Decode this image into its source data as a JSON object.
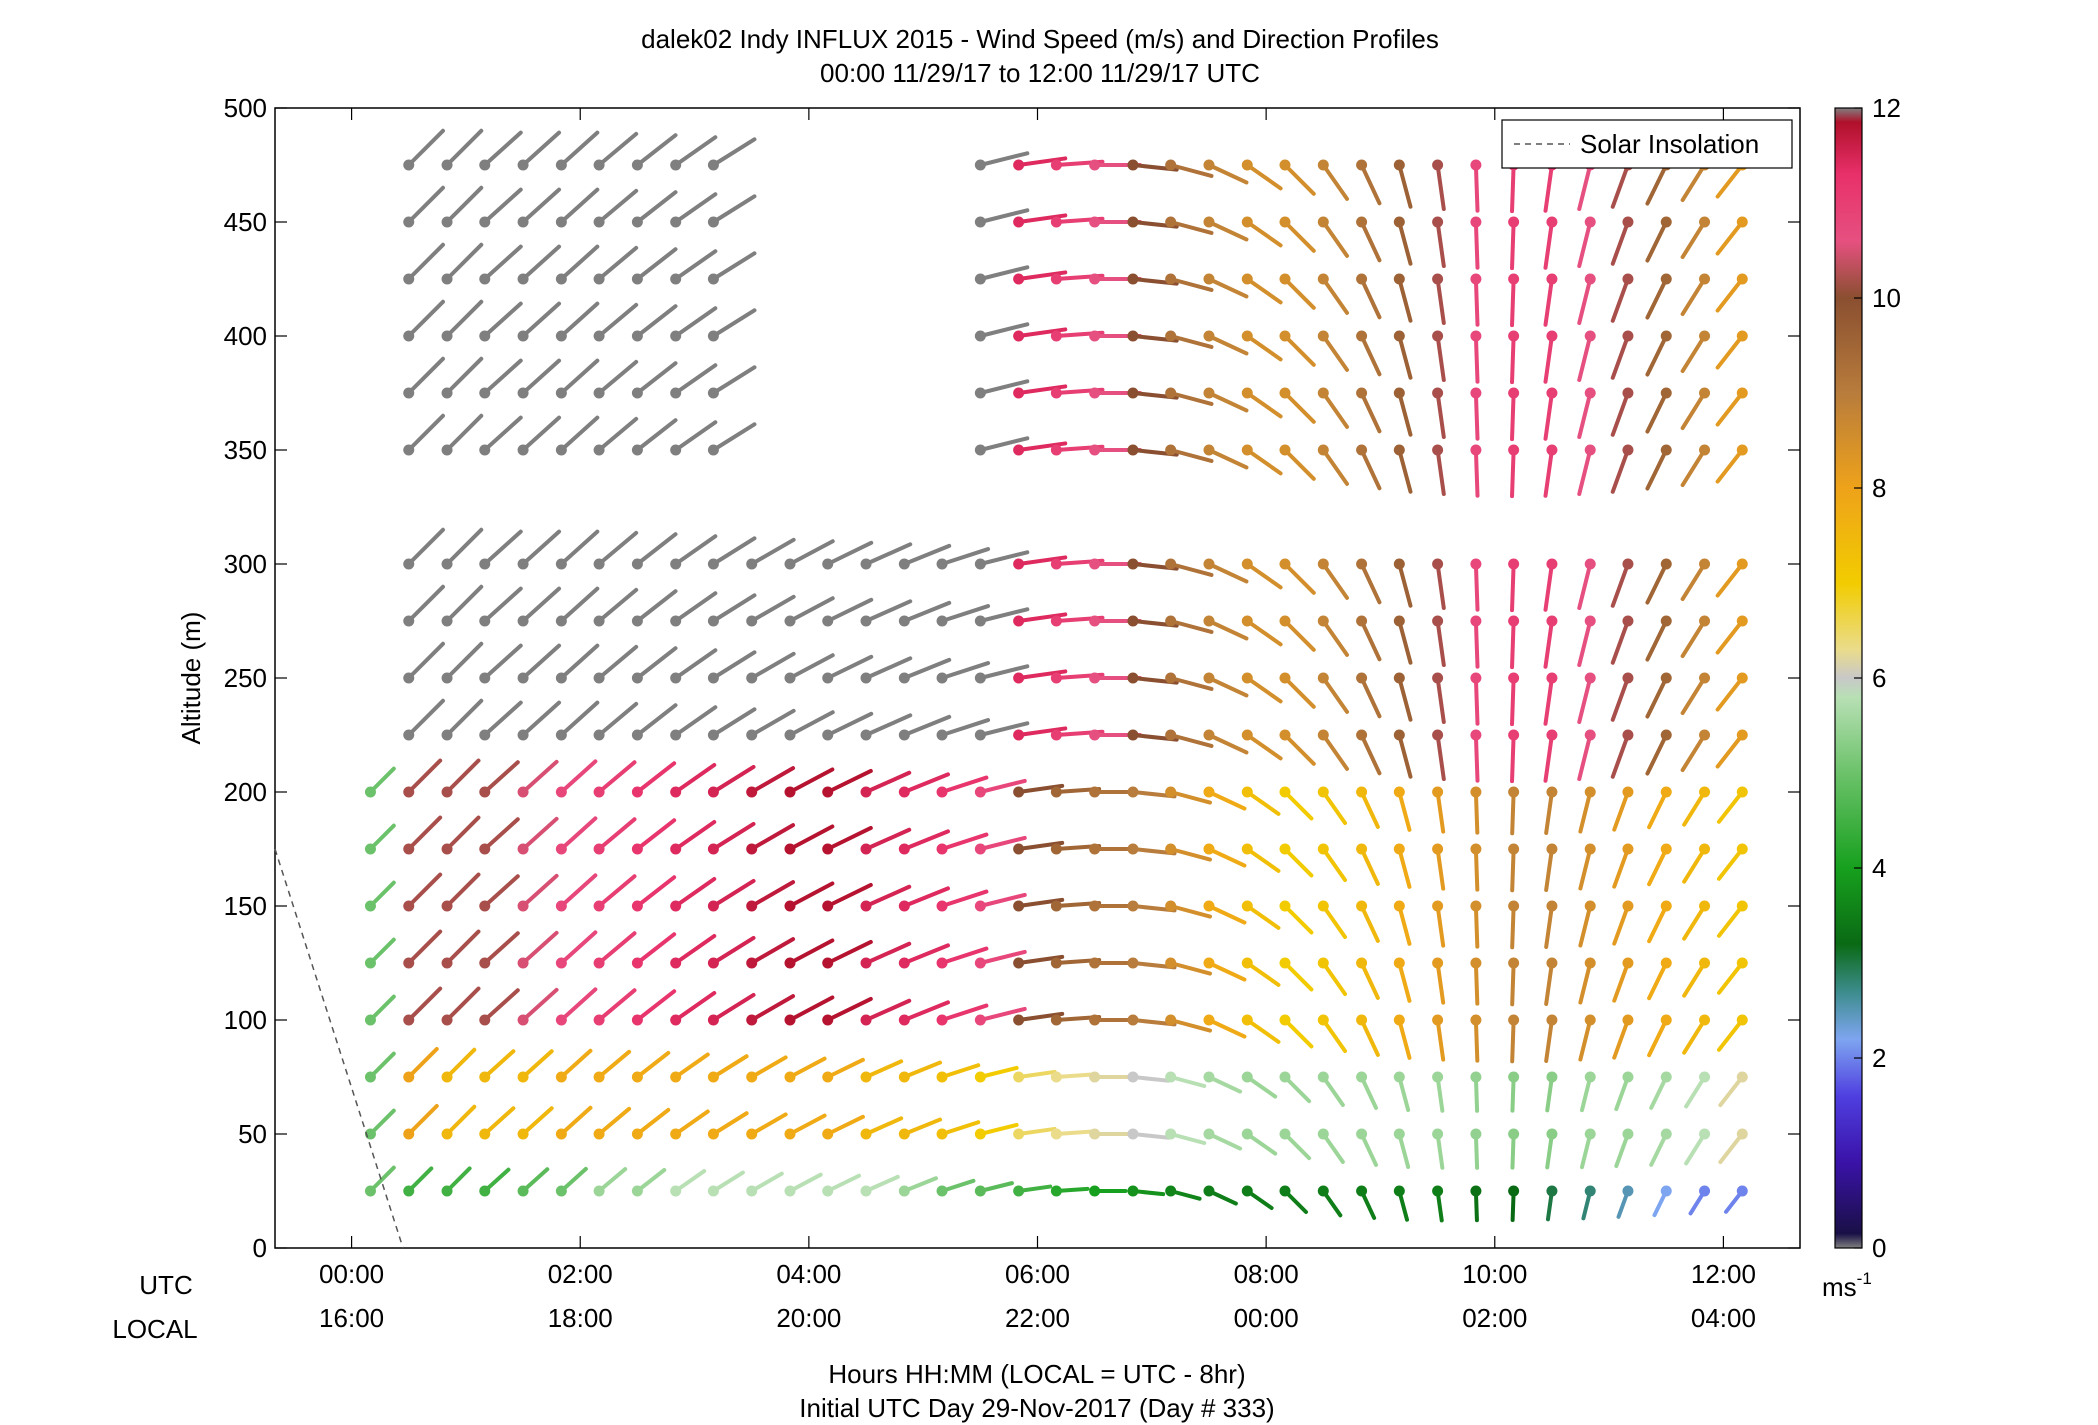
{
  "title_line1": "dalek02 Indy INFLUX 2015 - Wind Speed (m/s) and Direction Profiles",
  "title_line2": "00:00 11/29/17 to 12:00 11/29/17  UTC",
  "ylabel": "Altitude (m)",
  "utc_label": "UTC",
  "local_label": "LOCAL",
  "xlabel_line1": "Hours HH:MM  (LOCAL = UTC - 8hr)",
  "xlabel_line2": "Initial UTC Day 29-Nov-2017 (Day # 333)",
  "legend_label": "Solar Insolation",
  "colorbar_unit": "ms",
  "colorbar_unit_exp": "-1",
  "chart_data": {
    "type": "scatter",
    "description_of_marks": "wind barbs: dot at (time, altitude), stem points toward wind direction, colour = speed",
    "xlim_hours_utc": [
      -0.67,
      12.67
    ],
    "ylim": [
      0,
      500
    ],
    "yticks": [
      0,
      50,
      100,
      150,
      200,
      250,
      300,
      350,
      400,
      450,
      500
    ],
    "xticks_utc": [
      "00:00",
      "02:00",
      "04:00",
      "06:00",
      "08:00",
      "10:00",
      "12:00"
    ],
    "xticks_local": [
      "16:00",
      "18:00",
      "20:00",
      "22:00",
      "00:00",
      "02:00",
      "04:00"
    ],
    "xtick_hours": [
      0,
      2,
      4,
      6,
      8,
      10,
      12
    ],
    "colorbar": {
      "range": [
        0,
        12
      ],
      "ticks": [
        0,
        2,
        4,
        6,
        8,
        10,
        12
      ],
      "stops": [
        {
          "v": 0,
          "c": "#7f7f7f"
        },
        {
          "v": 0.15,
          "c": "#1a1046"
        },
        {
          "v": 0.9,
          "c": "#3a12a8"
        },
        {
          "v": 1.6,
          "c": "#4f3fe0"
        },
        {
          "v": 2.2,
          "c": "#7ea5f0"
        },
        {
          "v": 2.7,
          "c": "#3c8c8c"
        },
        {
          "v": 3.2,
          "c": "#0a6a14"
        },
        {
          "v": 4.0,
          "c": "#17a01e"
        },
        {
          "v": 5.0,
          "c": "#6cc26a"
        },
        {
          "v": 5.8,
          "c": "#b8e0b4"
        },
        {
          "v": 6.0,
          "c": "#c8c8c8"
        },
        {
          "v": 6.3,
          "c": "#eadc8a"
        },
        {
          "v": 7.0,
          "c": "#f2cc00"
        },
        {
          "v": 8.0,
          "c": "#eea21a"
        },
        {
          "v": 9.0,
          "c": "#b87c3c"
        },
        {
          "v": 10.0,
          "c": "#8a4f30"
        },
        {
          "v": 10.6,
          "c": "#e65080"
        },
        {
          "v": 11.3,
          "c": "#e8306a"
        },
        {
          "v": 11.85,
          "c": "#b0102a"
        },
        {
          "v": 12,
          "c": "#7f7f7f"
        }
      ]
    },
    "solar_insolation_line": [
      [
        -0.67,
        175
      ],
      [
        0.45,
        0
      ]
    ],
    "altitudes": [
      25,
      50,
      75,
      100,
      125,
      150,
      175,
      200,
      225,
      250,
      275,
      300,
      350,
      375,
      400,
      425,
      450,
      475
    ],
    "time_blocks": [
      {
        "t0": 0.0,
        "t1": 0.33,
        "bands": [
          [
            5,
            215,
            5
          ]
        ],
        "dir": 225
      },
      {
        "t0": 0.33,
        "t1": 0.67,
        "bands": [
          [
            5,
            40,
            4.5
          ],
          [
            40,
            100,
            8
          ],
          [
            100,
            215,
            10.2
          ],
          [
            215,
            500,
            12
          ]
        ],
        "dir": 225
      },
      {
        "t0": 0.67,
        "t1": 1.0,
        "bands": [
          [
            5,
            40,
            4.5
          ],
          [
            40,
            100,
            7.5
          ],
          [
            100,
            215,
            10.2
          ],
          [
            215,
            500,
            12
          ]
        ],
        "dir": 225
      },
      {
        "t0": 1.0,
        "t1": 1.33,
        "bands": [
          [
            5,
            40,
            4.5
          ],
          [
            40,
            100,
            7.5
          ],
          [
            100,
            215,
            10.2
          ],
          [
            215,
            500,
            12
          ]
        ],
        "dir": 228
      },
      {
        "t0": 1.33,
        "t1": 1.67,
        "bands": [
          [
            5,
            40,
            4.8
          ],
          [
            40,
            100,
            7.5
          ],
          [
            100,
            215,
            10.5
          ],
          [
            215,
            500,
            12
          ]
        ],
        "dir": 228
      },
      {
        "t0": 1.67,
        "t1": 2.0,
        "bands": [
          [
            5,
            40,
            5.0
          ],
          [
            40,
            100,
            7.8
          ],
          [
            100,
            215,
            10.8
          ],
          [
            215,
            500,
            12
          ]
        ],
        "dir": 228
      },
      {
        "t0": 2.0,
        "t1": 2.33,
        "bands": [
          [
            5,
            40,
            5.5
          ],
          [
            40,
            100,
            7.8
          ],
          [
            100,
            215,
            11.0
          ],
          [
            215,
            500,
            12
          ]
        ],
        "dir": 230
      },
      {
        "t0": 2.33,
        "t1": 2.67,
        "bands": [
          [
            5,
            40,
            5.5
          ],
          [
            40,
            100,
            7.8
          ],
          [
            100,
            215,
            11.2
          ],
          [
            215,
            500,
            12
          ]
        ],
        "dir": 232
      },
      {
        "t0": 2.67,
        "t1": 3.0,
        "bands": [
          [
            5,
            40,
            5.8
          ],
          [
            40,
            100,
            7.8
          ],
          [
            100,
            215,
            11.4
          ],
          [
            215,
            500,
            12
          ]
        ],
        "dir": 235
      },
      {
        "t0": 3.0,
        "t1": 3.33,
        "bands": [
          [
            5,
            40,
            5.8
          ],
          [
            40,
            100,
            7.8
          ],
          [
            100,
            215,
            11.5
          ],
          [
            215,
            500,
            12
          ]
        ],
        "dir": 238
      },
      {
        "t0": 3.33,
        "t1": 3.67,
        "bands": [
          [
            5,
            40,
            5.8
          ],
          [
            40,
            100,
            7.8
          ],
          [
            100,
            215,
            11.7
          ],
          [
            215,
            500,
            12
          ]
        ],
        "dir": 240
      },
      {
        "t0": 3.67,
        "t1": 4.0,
        "bands": [
          [
            5,
            40,
            5.8
          ],
          [
            40,
            100,
            7.8
          ],
          [
            100,
            215,
            11.8
          ],
          [
            215,
            500,
            12
          ]
        ],
        "dir": 242
      },
      {
        "t0": 4.0,
        "t1": 4.33,
        "bands": [
          [
            5,
            40,
            5.8
          ],
          [
            40,
            100,
            7.8
          ],
          [
            100,
            215,
            11.8
          ],
          [
            215,
            500,
            12
          ]
        ],
        "dir": 244
      },
      {
        "t0": 4.33,
        "t1": 4.67,
        "bands": [
          [
            5,
            40,
            5.8
          ],
          [
            40,
            100,
            7.5
          ],
          [
            100,
            215,
            11.5
          ],
          [
            215,
            500,
            12
          ]
        ],
        "dir": 246
      },
      {
        "t0": 4.67,
        "t1": 5.0,
        "bands": [
          [
            5,
            40,
            5.5
          ],
          [
            40,
            100,
            7.5
          ],
          [
            100,
            215,
            11.4
          ],
          [
            215,
            500,
            12
          ]
        ],
        "dir": 248
      },
      {
        "t0": 5.0,
        "t1": 5.33,
        "bands": [
          [
            5,
            40,
            5.0
          ],
          [
            40,
            100,
            7.3
          ],
          [
            100,
            215,
            11.2
          ],
          [
            215,
            500,
            12
          ]
        ],
        "dir": 252
      },
      {
        "t0": 5.33,
        "t1": 5.67,
        "bands": [
          [
            5,
            40,
            4.8
          ],
          [
            40,
            100,
            7.0
          ],
          [
            100,
            215,
            10.8
          ],
          [
            215,
            500,
            12
          ]
        ],
        "dir": 256
      },
      {
        "t0": 5.67,
        "t1": 6.0,
        "bands": [
          [
            5,
            40,
            4.5
          ],
          [
            40,
            100,
            6.5
          ],
          [
            100,
            215,
            10.0
          ],
          [
            215,
            500,
            11.4
          ]
        ],
        "dir": 262
      },
      {
        "t0": 6.0,
        "t1": 6.33,
        "bands": [
          [
            5,
            40,
            4.2
          ],
          [
            40,
            100,
            6.3
          ],
          [
            100,
            215,
            9.5
          ],
          [
            215,
            500,
            11.0
          ]
        ],
        "dir": 266
      },
      {
        "t0": 6.33,
        "t1": 6.67,
        "bands": [
          [
            5,
            40,
            4.0
          ],
          [
            40,
            100,
            6.2
          ],
          [
            100,
            215,
            9.2
          ],
          [
            215,
            500,
            10.6
          ]
        ],
        "dir": 270
      },
      {
        "t0": 6.67,
        "t1": 7.0,
        "bands": [
          [
            5,
            40,
            3.8
          ],
          [
            40,
            100,
            6.0
          ],
          [
            100,
            215,
            9.0
          ],
          [
            215,
            500,
            10.0
          ]
        ],
        "dir": 276
      },
      {
        "t0": 7.0,
        "t1": 7.33,
        "bands": [
          [
            5,
            40,
            3.6
          ],
          [
            40,
            100,
            5.8
          ],
          [
            100,
            215,
            8.5
          ],
          [
            215,
            500,
            9.2
          ]
        ],
        "dir": 285
      },
      {
        "t0": 7.33,
        "t1": 7.67,
        "bands": [
          [
            5,
            40,
            3.5
          ],
          [
            40,
            100,
            5.6
          ],
          [
            100,
            215,
            7.8
          ],
          [
            215,
            500,
            8.8
          ]
        ],
        "dir": 295
      },
      {
        "t0": 7.67,
        "t1": 8.0,
        "bands": [
          [
            5,
            40,
            3.5
          ],
          [
            40,
            100,
            5.5
          ],
          [
            100,
            215,
            7.3
          ],
          [
            215,
            500,
            8.5
          ]
        ],
        "dir": 305
      },
      {
        "t0": 8.0,
        "t1": 8.33,
        "bands": [
          [
            5,
            40,
            3.5
          ],
          [
            40,
            100,
            5.5
          ],
          [
            100,
            215,
            7.0
          ],
          [
            215,
            500,
            8.5
          ]
        ],
        "dir": 315
      },
      {
        "t0": 8.33,
        "t1": 8.67,
        "bands": [
          [
            5,
            40,
            3.5
          ],
          [
            40,
            100,
            5.5
          ],
          [
            100,
            215,
            7.2
          ],
          [
            215,
            500,
            8.8
          ]
        ],
        "dir": 325
      },
      {
        "t0": 8.67,
        "t1": 9.0,
        "bands": [
          [
            5,
            40,
            3.5
          ],
          [
            40,
            100,
            5.5
          ],
          [
            100,
            215,
            7.5
          ],
          [
            215,
            500,
            9.2
          ]
        ],
        "dir": 335
      },
      {
        "t0": 9.0,
        "t1": 9.33,
        "bands": [
          [
            5,
            40,
            3.5
          ],
          [
            40,
            100,
            5.5
          ],
          [
            100,
            215,
            7.8
          ],
          [
            215,
            500,
            9.6
          ]
        ],
        "dir": 345
      },
      {
        "t0": 9.33,
        "t1": 9.67,
        "bands": [
          [
            5,
            40,
            3.5
          ],
          [
            40,
            100,
            5.5
          ],
          [
            100,
            215,
            8.2
          ],
          [
            215,
            500,
            10.2
          ]
        ],
        "dir": 352
      },
      {
        "t0": 9.67,
        "t1": 10.0,
        "bands": [
          [
            5,
            40,
            3.3
          ],
          [
            40,
            100,
            5.4
          ],
          [
            100,
            215,
            8.5
          ],
          [
            215,
            500,
            10.8
          ]
        ],
        "dir": 358
      },
      {
        "t0": 10.0,
        "t1": 10.33,
        "bands": [
          [
            5,
            40,
            3.2
          ],
          [
            40,
            100,
            5.3
          ],
          [
            100,
            215,
            8.8
          ],
          [
            215,
            500,
            11.0
          ]
        ],
        "dir": 2
      },
      {
        "t0": 10.33,
        "t1": 10.67,
        "bands": [
          [
            5,
            40,
            3.0
          ],
          [
            40,
            100,
            5.3
          ],
          [
            100,
            215,
            8.8
          ],
          [
            215,
            500,
            11.0
          ]
        ],
        "dir": 8
      },
      {
        "t0": 10.67,
        "t1": 11.0,
        "bands": [
          [
            5,
            40,
            2.8
          ],
          [
            40,
            100,
            5.5
          ],
          [
            100,
            215,
            8.5
          ],
          [
            215,
            500,
            10.6
          ]
        ],
        "dir": 14
      },
      {
        "t0": 11.0,
        "t1": 11.33,
        "bands": [
          [
            5,
            40,
            2.5
          ],
          [
            40,
            100,
            5.5
          ],
          [
            100,
            215,
            8.2
          ],
          [
            215,
            500,
            10.2
          ]
        ],
        "dir": 20
      },
      {
        "t0": 11.33,
        "t1": 11.67,
        "bands": [
          [
            5,
            40,
            2.2
          ],
          [
            40,
            100,
            5.6
          ],
          [
            100,
            215,
            7.8
          ],
          [
            215,
            500,
            9.5
          ]
        ],
        "dir": 26
      },
      {
        "t0": 11.67,
        "t1": 12.0,
        "bands": [
          [
            5,
            40,
            2.0
          ],
          [
            40,
            100,
            5.8
          ],
          [
            100,
            215,
            7.5
          ],
          [
            215,
            500,
            8.8
          ]
        ],
        "dir": 32
      },
      {
        "t0": 12.0,
        "t1": 12.33,
        "bands": [
          [
            5,
            40,
            2.0
          ],
          [
            40,
            100,
            6.2
          ],
          [
            100,
            215,
            7.2
          ],
          [
            215,
            500,
            8.2
          ]
        ],
        "dir": 38
      }
    ],
    "gaps": [
      {
        "t0": 3.5,
        "t1": 5.5,
        "alt0": 315,
        "alt1": 500
      }
    ]
  }
}
